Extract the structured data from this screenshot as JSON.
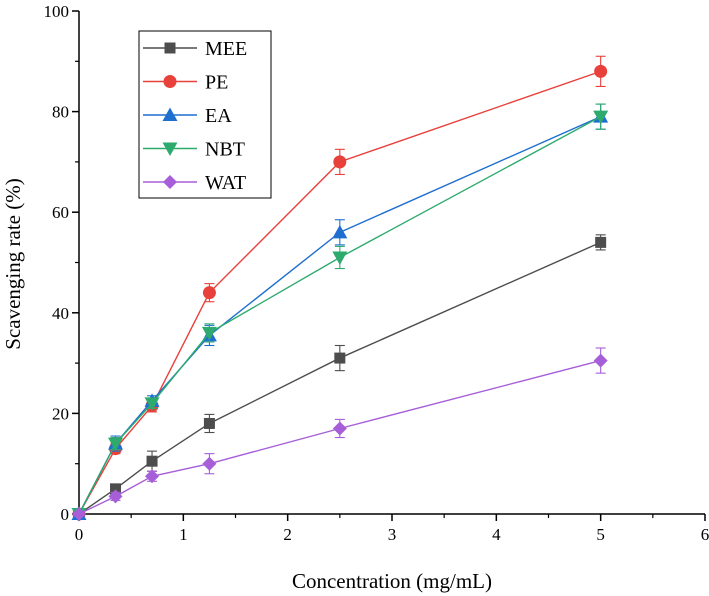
{
  "chart_data": {
    "type": "line",
    "title": "",
    "xlabel": "Concentration (mg/mL)",
    "ylabel": "Scavenging rate (%)",
    "xlim": [
      0,
      6
    ],
    "ylim": [
      0,
      100
    ],
    "xticks": [
      0,
      1,
      2,
      3,
      4,
      5,
      6
    ],
    "yticks": [
      0,
      20,
      40,
      60,
      80,
      100
    ],
    "x": [
      0,
      0.35,
      0.7,
      1.25,
      2.5,
      5
    ],
    "legend_position": "top-left",
    "series": [
      {
        "name": "MEE",
        "color": "#4d4d4d",
        "marker": "square",
        "values": [
          0,
          5.0,
          10.5,
          18.0,
          31.0,
          54.0
        ],
        "errors": [
          0,
          0.8,
          2.0,
          1.8,
          2.5,
          1.5
        ]
      },
      {
        "name": "PE",
        "color": "#e8403a",
        "marker": "circle",
        "values": [
          0,
          13.0,
          21.5,
          44.0,
          70.0,
          88.0
        ],
        "errors": [
          0,
          1.0,
          1.2,
          1.8,
          2.5,
          3.0
        ]
      },
      {
        "name": "EA",
        "color": "#1f6fd0",
        "marker": "triangle-up",
        "values": [
          0,
          14.0,
          22.5,
          35.5,
          56.0,
          79.0
        ],
        "errors": [
          0,
          1.5,
          1.0,
          2.0,
          2.5,
          2.5
        ]
      },
      {
        "name": "NBT",
        "color": "#2eaa6e",
        "marker": "triangle-down",
        "values": [
          0,
          14.0,
          22.0,
          36.0,
          51.0,
          79.0
        ],
        "errors": [
          0,
          1.2,
          1.0,
          1.8,
          2.2,
          2.5
        ]
      },
      {
        "name": "WAT",
        "color": "#a65fd8",
        "marker": "diamond",
        "values": [
          0,
          3.5,
          7.5,
          10.0,
          17.0,
          30.5
        ],
        "errors": [
          0,
          0.8,
          1.0,
          2.0,
          1.8,
          2.5
        ]
      }
    ]
  }
}
